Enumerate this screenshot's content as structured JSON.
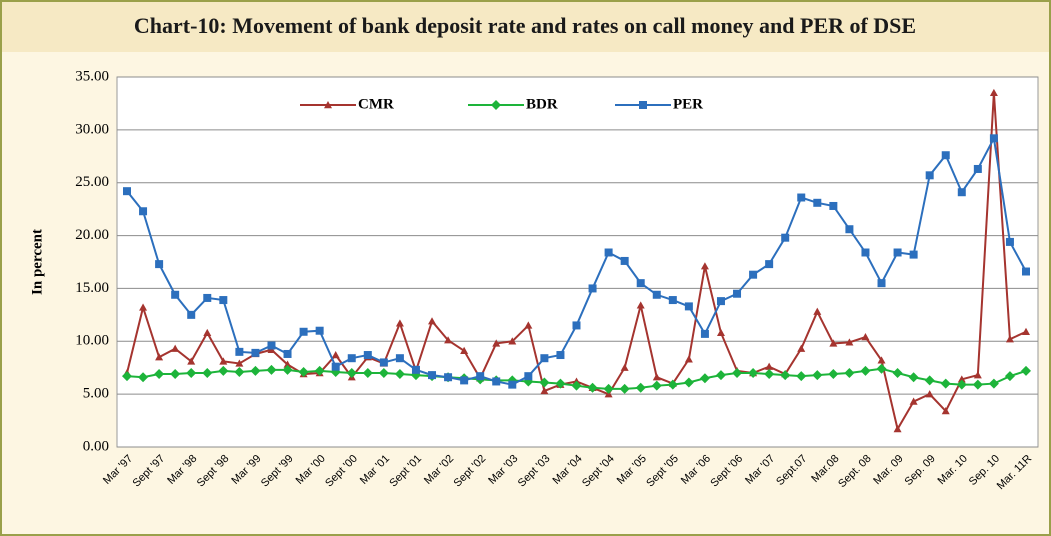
{
  "chart_data": {
    "type": "line",
    "title": "Chart-10: Movement of bank deposit rate and rates on call money and PER of DSE",
    "ylabel": "In percent",
    "categories": [
      "Mar '97",
      null,
      "Sept '97",
      null,
      "Mar '98",
      null,
      "Sept '98",
      null,
      "Mar '99",
      null,
      "Sept '99",
      null,
      "Mar '00",
      null,
      "Sept '00",
      null,
      "Mar '01",
      null,
      "Sept '01",
      null,
      "Mar '02",
      null,
      "Sept '02",
      null,
      "Mar '03",
      null,
      "Sept '03",
      null,
      "Mar '04",
      null,
      "Sept '04",
      null,
      "Mar '05",
      null,
      "Sept '05",
      null,
      "Mar '06",
      null,
      "Sept '06",
      null,
      "Mar '07",
      null,
      "Sept.07",
      null,
      "Mar.08",
      null,
      "Sept. 08",
      null,
      "Mar. 09",
      null,
      "Sep. 09",
      null,
      "Mar. 10",
      null,
      "Sep. 10",
      null,
      "Mar. 11R"
    ],
    "series": [
      {
        "name": "CMR",
        "color": "#a5342f",
        "marker": "triangle",
        "values": [
          7.0,
          13.2,
          8.5,
          9.3,
          8.1,
          10.8,
          8.1,
          7.9,
          8.8,
          9.2,
          7.8,
          6.9,
          7.0,
          8.7,
          6.6,
          8.5,
          7.9,
          11.7,
          7.2,
          11.9,
          10.1,
          9.1,
          6.5,
          9.8,
          10.0,
          11.5,
          5.3,
          5.9,
          6.2,
          5.6,
          5.0,
          7.5,
          13.4,
          6.6,
          6.0,
          8.3,
          17.1,
          10.8,
          7.2,
          7.0,
          7.6,
          6.9,
          9.3,
          12.8,
          9.8,
          9.9,
          10.4,
          8.2,
          1.7,
          4.3,
          5.0,
          3.4,
          6.4,
          6.8,
          33.5,
          10.2,
          10.9
        ]
      },
      {
        "name": "BDR",
        "color": "#1db43a",
        "marker": "diamond",
        "values": [
          6.7,
          6.6,
          6.9,
          6.9,
          7.0,
          7.0,
          7.2,
          7.1,
          7.2,
          7.3,
          7.3,
          7.1,
          7.2,
          7.1,
          7.0,
          7.0,
          7.0,
          6.9,
          6.8,
          6.7,
          6.6,
          6.5,
          6.4,
          6.3,
          6.3,
          6.2,
          6.1,
          6.0,
          5.8,
          5.6,
          5.5,
          5.5,
          5.6,
          5.8,
          5.9,
          6.1,
          6.5,
          6.8,
          7.0,
          7.0,
          6.9,
          6.8,
          6.7,
          6.8,
          6.9,
          7.0,
          7.2,
          7.4,
          7.0,
          6.6,
          6.3,
          6.0,
          5.9,
          5.9,
          6.0,
          6.7,
          7.2
        ]
      },
      {
        "name": "PER",
        "color": "#2c6fbd",
        "marker": "square",
        "values": [
          24.2,
          22.3,
          17.3,
          14.4,
          12.5,
          14.1,
          13.9,
          9.0,
          8.9,
          9.6,
          8.8,
          10.9,
          11.0,
          7.6,
          8.4,
          8.7,
          8.0,
          8.4,
          7.3,
          6.8,
          6.6,
          6.3,
          6.7,
          6.2,
          5.9,
          6.7,
          8.4,
          8.7,
          11.5,
          15.0,
          18.4,
          17.6,
          15.5,
          14.4,
          13.9,
          13.3,
          10.7,
          13.8,
          14.5,
          16.3,
          17.3,
          19.8,
          23.6,
          23.1,
          22.8,
          20.6,
          18.4,
          15.5,
          18.4,
          18.2,
          25.7,
          27.6,
          24.1,
          26.3,
          29.2,
          19.4,
          16.6
        ]
      }
    ],
    "ylim": [
      0,
      35
    ],
    "yticks": [
      {
        "value": 0,
        "label": "0.00"
      },
      {
        "value": 5,
        "label": "5.00"
      },
      {
        "value": 10,
        "label": "10.00"
      },
      {
        "value": 15,
        "label": "15.00"
      },
      {
        "value": 20,
        "label": "20.00"
      },
      {
        "value": 25,
        "label": "25.00"
      },
      {
        "value": 30,
        "label": "30.00"
      },
      {
        "value": 35,
        "label": "35.00"
      }
    ],
    "grid": true,
    "legend": "top"
  }
}
